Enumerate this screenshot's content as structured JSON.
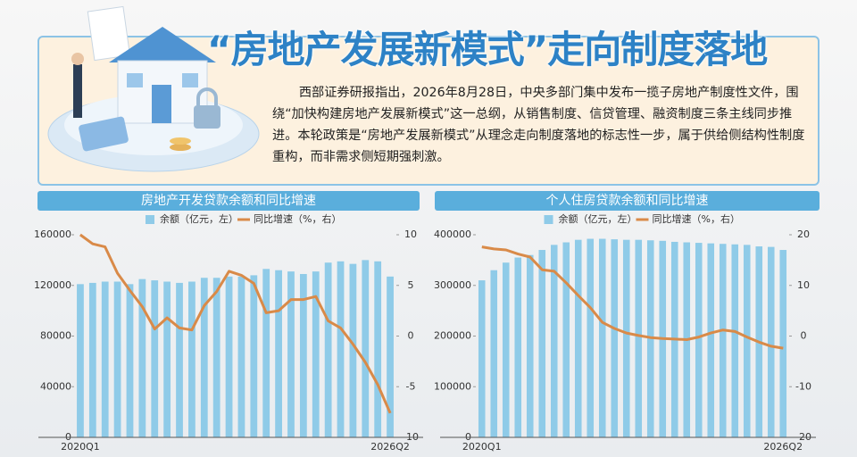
{
  "header": {
    "title": "“房地产发展新模式”走向制度落地",
    "text": "西部证券研报指出，2026年8月28日，中央多部门集中发布一揽子房地产制度性文件，围绕“加快构建房地产发展新模式”这一总纲，从销售制度、信贷管理、融资制度三条主线同步推进。本轮政策是“房地产发展新模式”从理念走向制度落地的标志性一步，属于供给侧结构性制度重构，而非需求侧短期强刺激。"
  },
  "chart_data": [
    {
      "type": "bar",
      "title": "房地产开发贷款余额和同比增速",
      "categories": [
        "2020Q1",
        null,
        null,
        null,
        null,
        null,
        null,
        null,
        null,
        null,
        null,
        null,
        null,
        null,
        null,
        null,
        null,
        null,
        null,
        null,
        null,
        null,
        null,
        null,
        null,
        "2026Q2"
      ],
      "series": [
        {
          "name": "余额（亿元，左）",
          "color": "#8fcbe8",
          "values": [
            121000,
            122000,
            123000,
            123000,
            121000,
            125000,
            124000,
            123000,
            122000,
            123000,
            126000,
            126000,
            127000,
            127000,
            128000,
            133000,
            132000,
            131000,
            129000,
            131000,
            138000,
            139000,
            137000,
            140000,
            139000,
            127000
          ]
        },
        {
          "name": "同比增速（%，右）",
          "color": "#d98a48",
          "axis": "y2",
          "values": [
            10,
            9.1,
            8.8,
            6.2,
            4.5,
            2.9,
            0.7,
            1.8,
            0.8,
            0.6,
            3.0,
            4.4,
            6.4,
            6.0,
            5.2,
            2.3,
            2.5,
            3.6,
            3.6,
            3.9,
            1.5,
            0.8,
            -0.8,
            -2.6,
            -4.8,
            -7.6
          ]
        }
      ],
      "ylim": [
        0,
        160000
      ],
      "yticks": [
        0,
        40000,
        80000,
        120000,
        160000
      ],
      "y2lim": [
        -10,
        10
      ],
      "y2ticks": [
        -10,
        -5,
        0,
        5,
        10
      ]
    },
    {
      "type": "bar",
      "title": "个人住房贷款余额和同比增速",
      "categories": [
        "2020Q1",
        null,
        null,
        null,
        null,
        null,
        null,
        null,
        null,
        null,
        null,
        null,
        null,
        null,
        null,
        null,
        null,
        null,
        null,
        null,
        null,
        null,
        null,
        null,
        null,
        "2026Q2"
      ],
      "series": [
        {
          "name": "余额（亿元，左）",
          "color": "#8fcbe8",
          "values": [
            310000,
            330000,
            345000,
            355000,
            360000,
            370000,
            380000,
            385000,
            390000,
            392000,
            392000,
            391000,
            390000,
            390000,
            389000,
            388000,
            386000,
            385000,
            384000,
            383000,
            382000,
            381000,
            380000,
            377000,
            376000,
            370000
          ]
        },
        {
          "name": "同比增速（%，右）",
          "color": "#d98a48",
          "axis": "y2",
          "values": [
            17.6,
            17.2,
            17.0,
            16.2,
            15.6,
            13.1,
            12.8,
            10.5,
            8.0,
            5.6,
            2.7,
            1.5,
            0.6,
            0.1,
            -0.3,
            -0.5,
            -0.6,
            -0.7,
            -0.2,
            0.6,
            1.2,
            0.9,
            -0.2,
            -1.2,
            -2.0,
            -2.4
          ]
        }
      ],
      "ylim": [
        0,
        400000
      ],
      "yticks": [
        0,
        100000,
        200000,
        300000,
        400000
      ],
      "y2lim": [
        -20,
        20
      ],
      "y2ticks": [
        -20,
        -10,
        0,
        10,
        20
      ]
    }
  ]
}
